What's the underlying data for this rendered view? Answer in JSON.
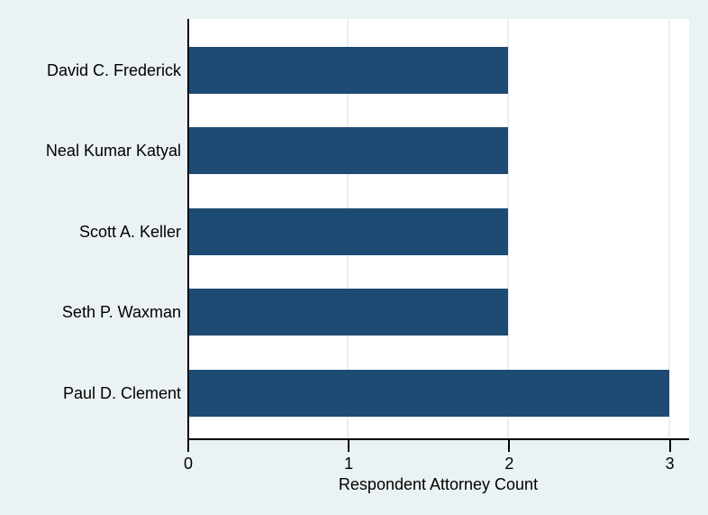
{
  "chart_data": {
    "type": "bar",
    "orientation": "horizontal",
    "categories": [
      "David C. Frederick",
      "Neal Kumar Katyal",
      "Scott A. Keller",
      "Seth P. Waxman",
      "Paul D. Clement"
    ],
    "values": [
      2,
      2,
      2,
      2,
      3
    ],
    "title": "",
    "xlabel": "Respondent Attorney Count",
    "ylabel": "",
    "xlim": [
      0,
      3.12
    ],
    "xticks": [
      0,
      1,
      2,
      3
    ],
    "grid": "vertical gridlines at x ticks 1,2,3",
    "legend": "none"
  },
  "colors": {
    "background": "#eaf2f3",
    "plot_background": "#ffffff",
    "bar": "#1e4b73",
    "gridline": "#e8eef4",
    "axis_line": "#000000",
    "text": "#000000"
  }
}
